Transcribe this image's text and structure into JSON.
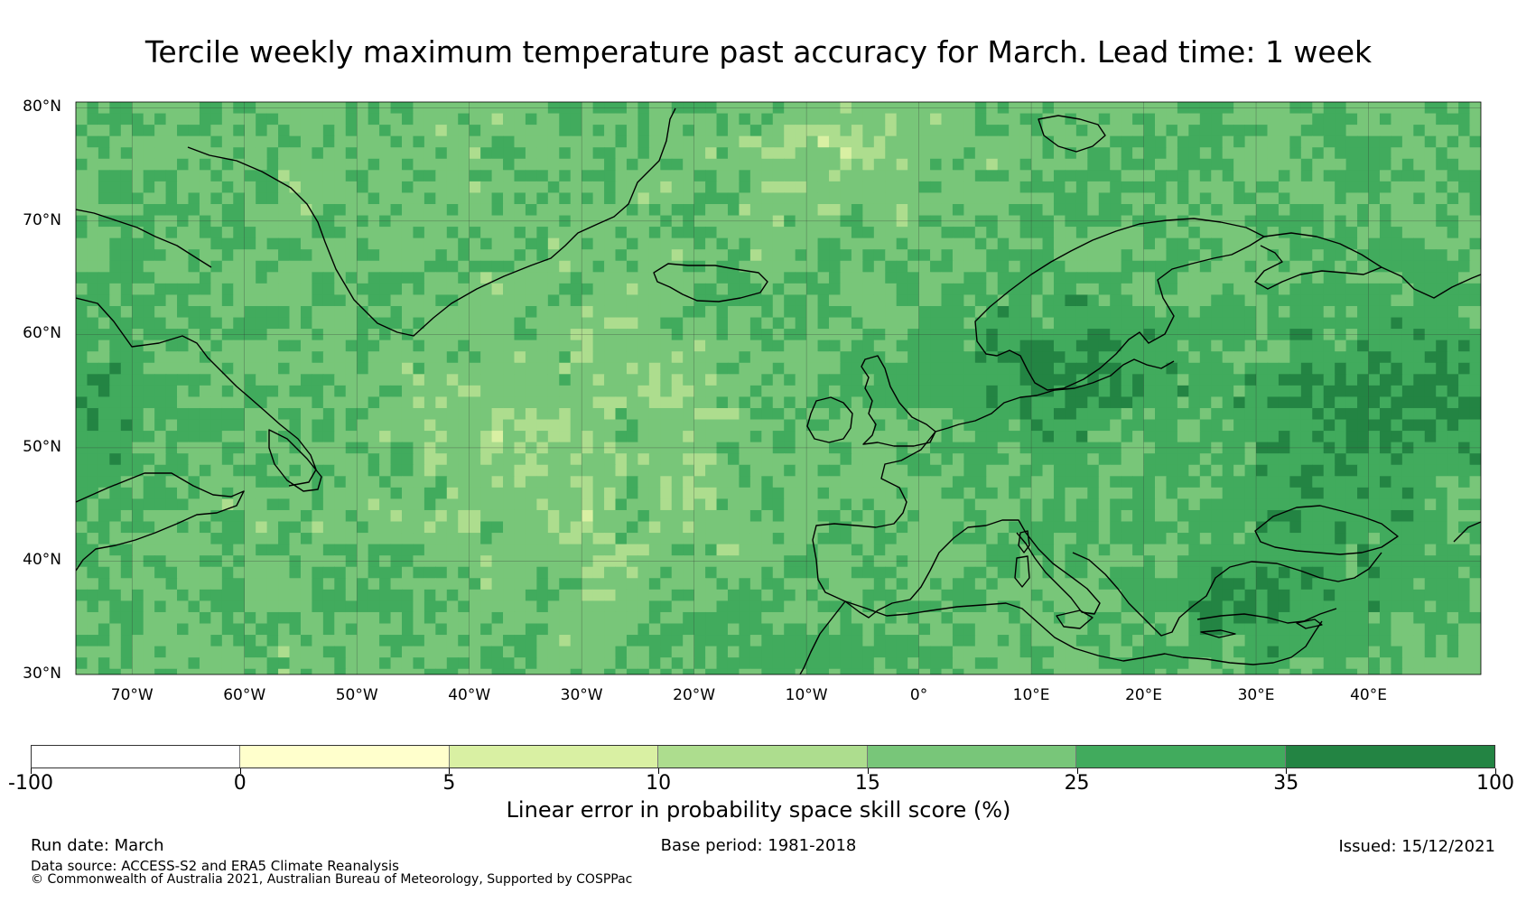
{
  "title": "Tercile weekly maximum temperature past accuracy for March. Lead time: 1 week",
  "map": {
    "extent": {
      "lon_min": -75,
      "lon_max": 50,
      "lat_min": 30,
      "lat_max": 80.5
    },
    "lat_labels": [
      {
        "lat": 80,
        "label": "80°N"
      },
      {
        "lat": 70,
        "label": "70°N"
      },
      {
        "lat": 60,
        "label": "60°N"
      },
      {
        "lat": 50,
        "label": "50°N"
      },
      {
        "lat": 40,
        "label": "40°N"
      },
      {
        "lat": 30,
        "label": "30°N"
      }
    ],
    "lon_labels": [
      {
        "lon": -70,
        "label": "70°W"
      },
      {
        "lon": -60,
        "label": "60°W"
      },
      {
        "lon": -50,
        "label": "50°W"
      },
      {
        "lon": -40,
        "label": "40°W"
      },
      {
        "lon": -30,
        "label": "30°W"
      },
      {
        "lon": -20,
        "label": "20°W"
      },
      {
        "lon": -10,
        "label": "10°W"
      },
      {
        "lon": 0,
        "label": "0°"
      },
      {
        "lon": 10,
        "label": "10°E"
      },
      {
        "lon": 20,
        "label": "20°E"
      },
      {
        "lon": 30,
        "label": "30°E"
      },
      {
        "lon": 40,
        "label": "40°E"
      }
    ]
  },
  "colorbar": {
    "label": "Linear error in probability space skill score (%)",
    "bins": [
      {
        "from": -100,
        "to": 0,
        "color": "#ffffff"
      },
      {
        "from": 0,
        "to": 5,
        "color": "#ffffcc"
      },
      {
        "from": 5,
        "to": 10,
        "color": "#d9f0a3"
      },
      {
        "from": 10,
        "to": 15,
        "color": "#addd8e"
      },
      {
        "from": 15,
        "to": 25,
        "color": "#78c679"
      },
      {
        "from": 25,
        "to": 35,
        "color": "#41ab5d"
      },
      {
        "from": 35,
        "to": 100,
        "color": "#238443"
      }
    ],
    "ticks": [
      "-100",
      "0",
      "5",
      "10",
      "15",
      "25",
      "35",
      "100"
    ]
  },
  "footer": {
    "run_date": "Run date: March",
    "base_period": "Base period: 1981-2018",
    "issued": "Issued: 15/12/2021",
    "data_source": "Data source: ACCESS-S2 and ERA5 Climate Reanalysis",
    "copyright": "© Commonwealth of Australia 2021, Australian Bureau of Meteorology, Supported by COSPPac"
  }
}
